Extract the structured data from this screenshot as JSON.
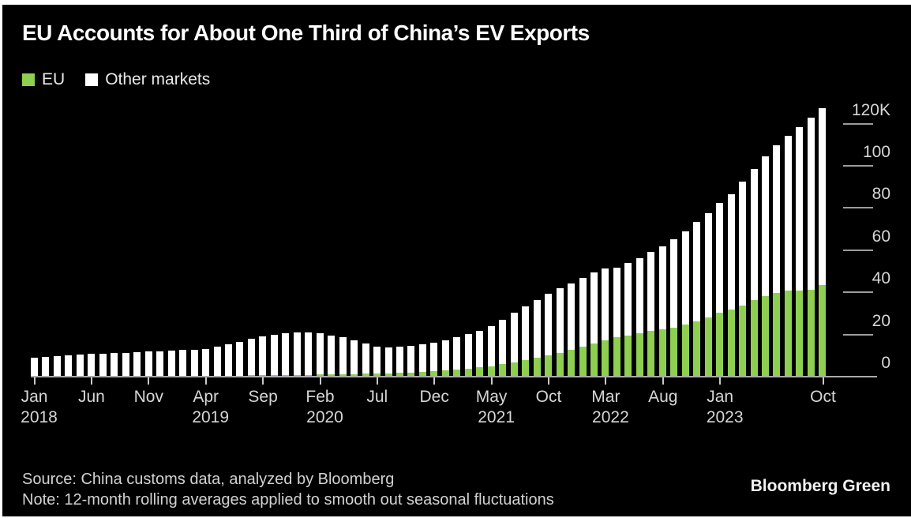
{
  "title": "EU Accounts for About One Third of China’s EV Exports",
  "legend": [
    {
      "label": "EU",
      "color": "#8ecf52"
    },
    {
      "label": "Other markets",
      "color": "#ffffff"
    }
  ],
  "footer": {
    "source": "Source: China customs data, analyzed by Bloomberg",
    "note": "Note: 12-month rolling averages applied to smooth out seasonal fluctuations",
    "brand": "Bloomberg Green"
  },
  "colors": {
    "page": "#ffffff",
    "background": "#000000",
    "eu": "#8ecf52",
    "other": "#ffffff",
    "title_text": "#ffffff",
    "muted_text": "#d6d6d6",
    "axis_line": "#ababab"
  },
  "chart_data": {
    "type": "bar",
    "stacked": true,
    "title": "EU Accounts for About One Third of China’s EV Exports",
    "unit": "thousand vehicles (K)",
    "x_range": "Jan 2018 – Oct 2023",
    "n_bars": 70,
    "start_year": 2018,
    "y_axis": {
      "side": "right",
      "ticks": [
        0,
        20,
        40,
        60,
        80,
        100,
        120
      ],
      "tick_labels": [
        "0",
        "20",
        "40",
        "60",
        "80",
        "100",
        "120K"
      ],
      "ylim": [
        0,
        131
      ]
    },
    "x_ticks": [
      {
        "i": 0,
        "month": "Jan",
        "year": "2018"
      },
      {
        "i": 5,
        "month": "Jun"
      },
      {
        "i": 10,
        "month": "Nov"
      },
      {
        "i": 15,
        "month": "Apr",
        "year": "2019"
      },
      {
        "i": 20,
        "month": "Sep"
      },
      {
        "i": 25,
        "month": "Feb",
        "year": "2020"
      },
      {
        "i": 30,
        "month": "Jul"
      },
      {
        "i": 35,
        "month": "Dec"
      },
      {
        "i": 40,
        "month": "May",
        "year": "2021"
      },
      {
        "i": 45,
        "month": "Oct"
      },
      {
        "i": 50,
        "month": "Mar",
        "year": "2022"
      },
      {
        "i": 55,
        "month": "Aug"
      },
      {
        "i": 60,
        "month": "Jan",
        "year": "2023"
      },
      {
        "i": 69,
        "month": "Oct"
      }
    ],
    "series": [
      {
        "name": "EU",
        "color": "#8ecf52",
        "values": [
          0,
          0,
          0,
          0,
          0,
          0,
          0,
          0,
          0,
          0,
          0,
          0,
          0,
          0,
          0.1,
          0.1,
          0.15,
          0.2,
          0.2,
          0.25,
          0.3,
          0.3,
          0.35,
          0.4,
          0.5,
          0.6,
          0.7,
          0.8,
          0.9,
          1.0,
          1.1,
          1.3,
          1.5,
          1.7,
          1.9,
          2.2,
          2.5,
          2.9,
          3.4,
          4.0,
          4.7,
          5.5,
          6.4,
          7.4,
          8.5,
          9.7,
          11.0,
          12.5,
          14.0,
          15.5,
          17.0,
          18.3,
          19.3,
          20.3,
          21.2,
          22.0,
          23.0,
          24.2,
          25.8,
          27.8,
          30.0,
          31.5,
          33.5,
          36.0,
          38.0,
          39.5,
          40.5,
          40.5,
          41.0,
          43.0
        ]
      },
      {
        "name": "Other markets",
        "color": "#ffffff",
        "values": [
          8.5,
          9.0,
          9.5,
          9.9,
          10.2,
          10.5,
          10.6,
          10.7,
          11.0,
          11.2,
          11.5,
          11.8,
          12.0,
          12.2,
          12.4,
          12.7,
          13.55,
          14.8,
          16.0,
          17.25,
          18.5,
          19.3,
          19.85,
          20.2,
          20.3,
          19.7,
          18.6,
          17.4,
          15.9,
          14.2,
          12.9,
          12.2,
          12.3,
          12.7,
          13.1,
          13.5,
          14.3,
          15.3,
          16.6,
          17.5,
          18.8,
          21.0,
          23.4,
          25.6,
          27.5,
          29.1,
          30.5,
          31.5,
          32.5,
          33.5,
          34.0,
          33.2,
          34.2,
          35.7,
          37.8,
          39.5,
          42.0,
          44.3,
          47.2,
          49.2,
          52.0,
          54.5,
          58.5,
          62.0,
          66.0,
          70.0,
          73.5,
          77.5,
          81.5,
          84.0
        ]
      }
    ]
  }
}
